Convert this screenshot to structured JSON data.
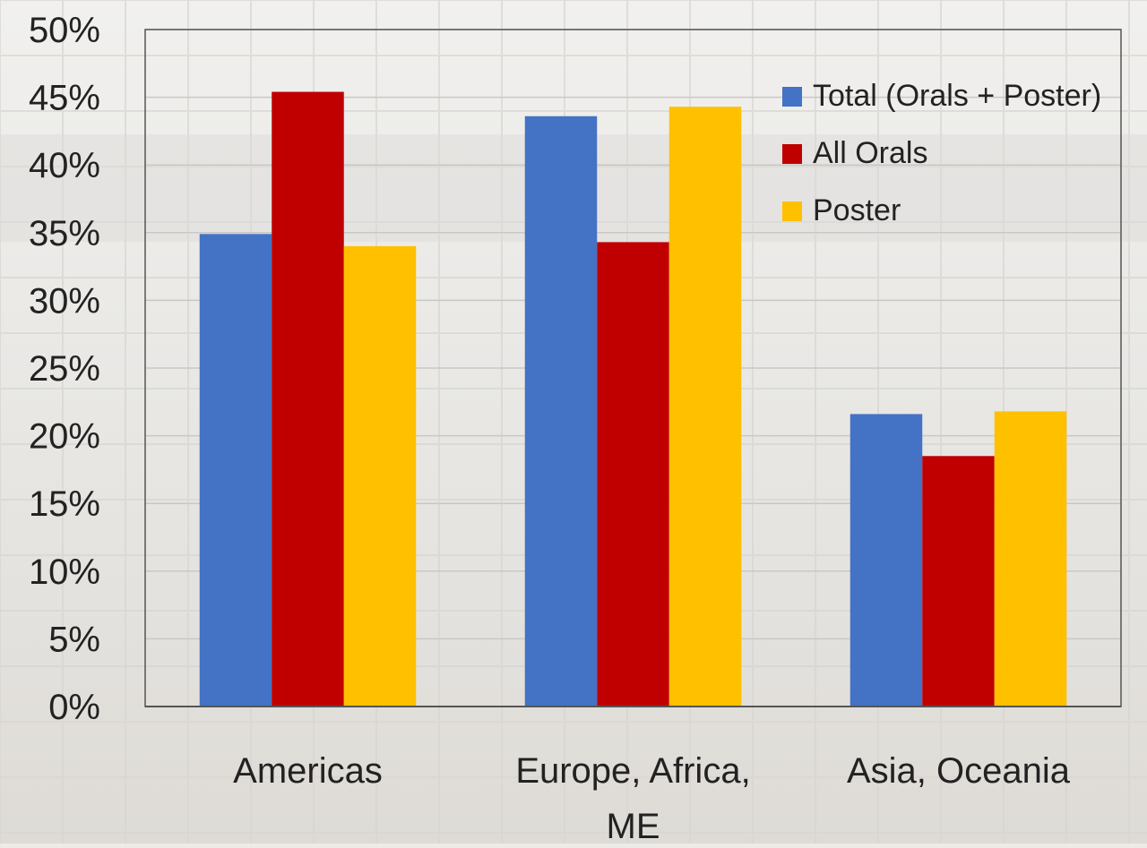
{
  "chart_data": {
    "type": "bar",
    "title": "",
    "xlabel": "",
    "ylabel": "",
    "categories": [
      "Americas",
      "Europe, Africa, ME",
      "Asia, Oceania"
    ],
    "category_lines": [
      [
        "Americas"
      ],
      [
        "Europe, Africa,",
        "ME"
      ],
      [
        "Asia, Oceania"
      ]
    ],
    "series": [
      {
        "name": "Total (Orals + Poster)",
        "color": "#4472c4",
        "values": [
          34.9,
          43.6,
          21.6
        ]
      },
      {
        "name": "All Orals",
        "color": "#c00000",
        "values": [
          45.4,
          34.3,
          18.5
        ]
      },
      {
        "name": "Poster",
        "color": "#ffc000",
        "values": [
          34.0,
          44.3,
          21.8
        ]
      }
    ],
    "ylim": [
      0,
      50
    ],
    "ytick_step": 5,
    "y_tick_labels": [
      "0%",
      "5%",
      "10%",
      "15%",
      "20%",
      "25%",
      "30%",
      "35%",
      "40%",
      "45%",
      "50%"
    ],
    "grid": true,
    "legend": "top-right",
    "background_colors": {
      "page": "#ecebe8",
      "grid": "#c8c8c8",
      "axis": "#555555"
    }
  }
}
